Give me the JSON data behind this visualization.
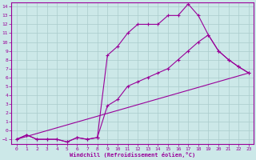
{
  "xlabel": "Windchill (Refroidissement éolien,°C)",
  "bg_color": "#cce8e8",
  "line_color": "#990099",
  "grid_color": "#aacccc",
  "xlim": [
    -0.5,
    23.5
  ],
  "ylim": [
    -1.5,
    14.5
  ],
  "xticks": [
    0,
    1,
    2,
    3,
    4,
    5,
    6,
    7,
    8,
    9,
    10,
    11,
    12,
    13,
    14,
    15,
    16,
    17,
    18,
    19,
    20,
    21,
    22,
    23
  ],
  "yticks": [
    -1,
    0,
    1,
    2,
    3,
    4,
    5,
    6,
    7,
    8,
    9,
    10,
    11,
    12,
    13,
    14
  ],
  "line1_x": [
    0,
    1,
    2,
    3,
    4,
    5,
    6,
    7,
    8,
    9,
    10,
    11,
    12,
    13,
    14,
    15,
    16,
    17,
    18,
    19,
    20,
    21,
    22,
    23
  ],
  "line1_y": [
    -1,
    -0.5,
    -1,
    -1,
    -1,
    -1.3,
    -0.8,
    -1,
    -0.8,
    8.5,
    9.5,
    11,
    12,
    12,
    12,
    13,
    13,
    14.3,
    13,
    10.8,
    9,
    8,
    7.2,
    6.5
  ],
  "line2_x": [
    0,
    1,
    2,
    3,
    4,
    5,
    6,
    7,
    8,
    9,
    10,
    11,
    12,
    13,
    14,
    15,
    16,
    17,
    18,
    19,
    20,
    21,
    22,
    23
  ],
  "line2_y": [
    -1,
    -0.5,
    -1,
    -1,
    -1,
    -1.3,
    -0.8,
    -1,
    -0.8,
    2.8,
    3.5,
    5,
    5.5,
    6,
    6.5,
    7,
    8,
    9,
    10,
    10.8,
    9,
    8,
    7.2,
    6.5
  ],
  "line3_x": [
    0,
    23
  ],
  "line3_y": [
    -1,
    6.5
  ],
  "marker_size": 2.5,
  "line_width": 0.8
}
